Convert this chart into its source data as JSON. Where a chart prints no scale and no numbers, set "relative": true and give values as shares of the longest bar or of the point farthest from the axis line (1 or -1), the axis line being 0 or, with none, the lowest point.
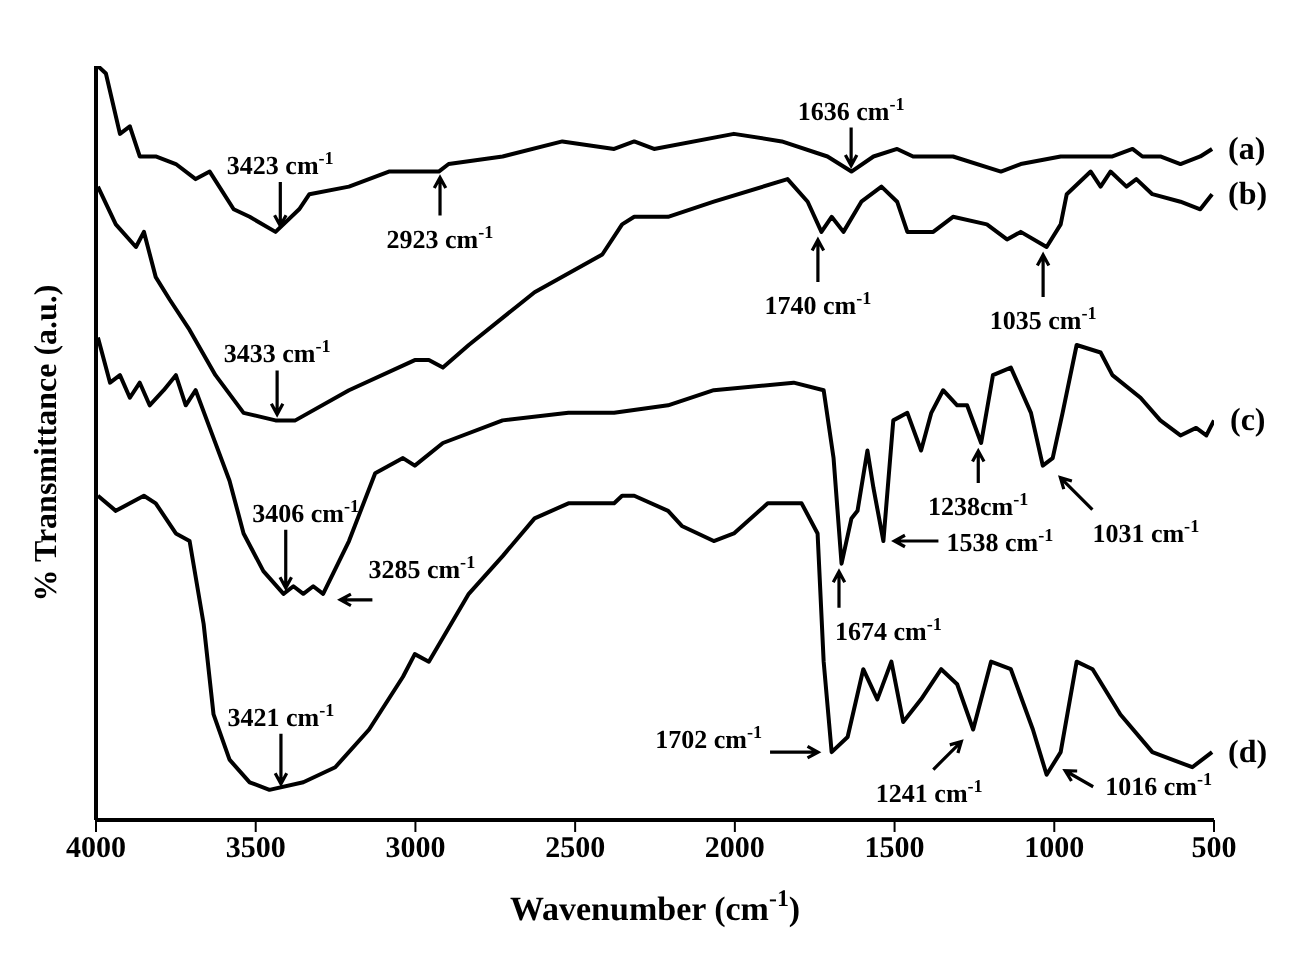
{
  "chart_data": {
    "type": "line",
    "relative": true,
    "xlabel": "Wavenumber (cm$^{-1}$)",
    "ylabel": "% Transmittance (a.u.)",
    "xlim": [
      4000,
      500
    ],
    "xticks": [
      4000,
      3500,
      3000,
      2500,
      2000,
      1500,
      1000,
      500
    ],
    "marker": "none",
    "line_style": "solid",
    "series": [
      {
        "name": "(a)",
        "color": "#000000",
        "x": [
          3994,
          3969,
          3925,
          3894,
          3863,
          3813,
          3750,
          3688,
          3644,
          3569,
          3519,
          3438,
          3364,
          3332,
          3208,
          3083,
          2958,
          2927,
          2896,
          2727,
          2540,
          2378,
          2315,
          2253,
          2003,
          1853,
          1710,
          1635,
          1566,
          1492,
          1442,
          1317,
          1167,
          1105,
          980,
          818,
          755,
          724,
          668,
          605,
          543,
          506
        ],
        "values": [
          1.0,
          0.99,
          0.91,
          0.92,
          0.88,
          0.88,
          0.87,
          0.85,
          0.86,
          0.81,
          0.8,
          0.78,
          0.81,
          0.83,
          0.84,
          0.86,
          0.86,
          0.86,
          0.87,
          0.88,
          0.9,
          0.89,
          0.9,
          0.89,
          0.91,
          0.9,
          0.88,
          0.86,
          0.88,
          0.89,
          0.88,
          0.88,
          0.86,
          0.87,
          0.88,
          0.88,
          0.89,
          0.88,
          0.88,
          0.87,
          0.88,
          0.89
        ]
      },
      {
        "name": "(b)",
        "color": "#000000",
        "x": [
          3994,
          3938,
          3875,
          3850,
          3813,
          3769,
          3707,
          3626,
          3538,
          3438,
          3376,
          3208,
          3002,
          2958,
          2914,
          2833,
          2627,
          2415,
          2353,
          2315,
          2209,
          2066,
          1835,
          1772,
          1729,
          1697,
          1660,
          1604,
          1541,
          1492,
          1460,
          1379,
          1317,
          1211,
          1148,
          1105,
          1024,
          980,
          961,
          886,
          855,
          824,
          774,
          743,
          693,
          605,
          543,
          506
        ],
        "values": [
          0.84,
          0.79,
          0.76,
          0.78,
          0.72,
          0.69,
          0.65,
          0.59,
          0.54,
          0.53,
          0.53,
          0.57,
          0.61,
          0.61,
          0.6,
          0.63,
          0.7,
          0.75,
          0.79,
          0.8,
          0.8,
          0.82,
          0.85,
          0.82,
          0.78,
          0.8,
          0.78,
          0.82,
          0.84,
          0.82,
          0.78,
          0.78,
          0.8,
          0.79,
          0.77,
          0.78,
          0.76,
          0.79,
          0.83,
          0.86,
          0.84,
          0.86,
          0.84,
          0.85,
          0.83,
          0.82,
          0.81,
          0.83
        ]
      },
      {
        "name": "(c)",
        "color": "#000000",
        "x": [
          3994,
          3956,
          3925,
          3894,
          3863,
          3832,
          3788,
          3750,
          3719,
          3688,
          3644,
          3582,
          3538,
          3476,
          3413,
          3382,
          3351,
          3320,
          3289,
          3208,
          3126,
          3039,
          3002,
          2914,
          2727,
          2521,
          2378,
          2209,
          2066,
          1816,
          1722,
          1691,
          1666,
          1635,
          1616,
          1585,
          1566,
          1535,
          1504,
          1460,
          1417,
          1385,
          1348,
          1304,
          1273,
          1229,
          1192,
          1136,
          1073,
          1036,
          1005,
          974,
          930,
          855,
          818,
          730,
          668,
          605,
          556,
          524,
          500
        ],
        "values": [
          0.64,
          0.58,
          0.59,
          0.56,
          0.58,
          0.55,
          0.57,
          0.59,
          0.55,
          0.57,
          0.52,
          0.45,
          0.38,
          0.33,
          0.3,
          0.31,
          0.3,
          0.31,
          0.3,
          0.37,
          0.46,
          0.48,
          0.47,
          0.5,
          0.53,
          0.54,
          0.54,
          0.55,
          0.57,
          0.58,
          0.57,
          0.48,
          0.34,
          0.4,
          0.41,
          0.49,
          0.44,
          0.37,
          0.53,
          0.54,
          0.49,
          0.54,
          0.57,
          0.55,
          0.55,
          0.5,
          0.59,
          0.6,
          0.54,
          0.47,
          0.48,
          0.54,
          0.63,
          0.62,
          0.59,
          0.56,
          0.53,
          0.51,
          0.52,
          0.51,
          0.53
        ]
      },
      {
        "name": "(d)",
        "color": "#000000",
        "x": [
          3994,
          3938,
          3894,
          3850,
          3813,
          3750,
          3707,
          3663,
          3632,
          3582,
          3519,
          3457,
          3351,
          3251,
          3145,
          3039,
          3002,
          2958,
          2833,
          2727,
          2627,
          2521,
          2378,
          2353,
          2315,
          2209,
          2166,
          2066,
          2003,
          1897,
          1791,
          1741,
          1722,
          1697,
          1647,
          1598,
          1554,
          1510,
          1473,
          1417,
          1354,
          1304,
          1254,
          1198,
          1136,
          1067,
          1024,
          980,
          930,
          880,
          793,
          693,
          568,
          506
        ],
        "values": [
          0.43,
          0.41,
          0.42,
          0.43,
          0.42,
          0.38,
          0.37,
          0.26,
          0.14,
          0.08,
          0.05,
          0.04,
          0.05,
          0.07,
          0.12,
          0.19,
          0.22,
          0.21,
          0.3,
          0.35,
          0.4,
          0.42,
          0.42,
          0.43,
          0.43,
          0.41,
          0.39,
          0.37,
          0.38,
          0.42,
          0.42,
          0.38,
          0.21,
          0.09,
          0.11,
          0.2,
          0.16,
          0.21,
          0.13,
          0.16,
          0.2,
          0.18,
          0.12,
          0.21,
          0.2,
          0.12,
          0.06,
          0.09,
          0.21,
          0.2,
          0.14,
          0.09,
          0.07,
          0.09
        ]
      }
    ],
    "annotations": [
      {
        "text": "3423 cm$^{-1}$",
        "x": 3423,
        "y": 0.78
      },
      {
        "text": "2923 cm$^{-1}$",
        "x": 2923,
        "y": 0.86
      },
      {
        "text": "1636 cm$^{-1}$",
        "x": 1636,
        "y": 0.86
      },
      {
        "text": "1740 cm$^{-1}$",
        "x": 1740,
        "y": 0.78
      },
      {
        "text": "1035 cm$^{-1}$",
        "x": 1035,
        "y": 0.76
      },
      {
        "text": "3433 cm$^{-1}$",
        "x": 3433,
        "y": 0.53
      },
      {
        "text": "3406 cm$^{-1}$",
        "x": 3406,
        "y": 0.3
      },
      {
        "text": "3285 cm$^{-1}$",
        "x": 3285,
        "y": 0.3
      },
      {
        "text": "1674 cm$^{-1}$",
        "x": 1674,
        "y": 0.34
      },
      {
        "text": "1538 cm$^{-1}$",
        "x": 1538,
        "y": 0.37
      },
      {
        "text": "1238cm$^{-1}$",
        "x": 1238,
        "y": 0.5
      },
      {
        "text": "1031 cm$^{-1}$",
        "x": 1031,
        "y": 0.47
      },
      {
        "text": "3421 cm$^{-1}$",
        "x": 3421,
        "y": 0.04
      },
      {
        "text": "1702 cm$^{-1}$",
        "x": 1702,
        "y": 0.09
      },
      {
        "text": "1241 cm$^{-1}$",
        "x": 1241,
        "y": 0.12
      },
      {
        "text": "1016 cm$^{-1}$",
        "x": 1016,
        "y": 0.06
      }
    ]
  }
}
